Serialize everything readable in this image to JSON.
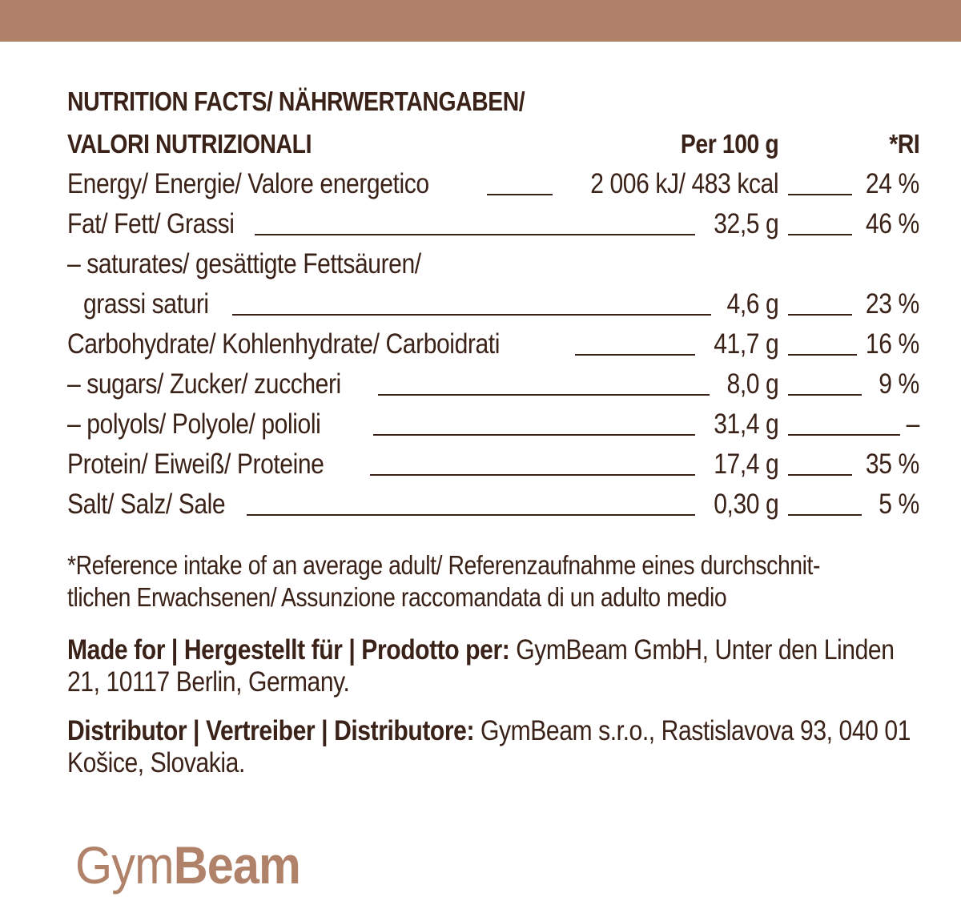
{
  "brand": {
    "color": "#b08269",
    "logo_light": "Gym",
    "logo_bold": "Beam"
  },
  "table": {
    "title_line1": "NUTRITION FACTS/ NÄHRWERTANGABEN/",
    "title_line2": "VALORI NUTRIZIONALI",
    "col_per100": "Per 100 g",
    "col_ri": "*RI",
    "rows": [
      {
        "label": "Energy/ Energie/ Valore energetico",
        "value": "2 006 kJ/ 483 kcal",
        "ri": "24 %"
      },
      {
        "label": "Fat/ Fett/ Grassi",
        "value": "32,5 g",
        "ri": "46 %"
      },
      {
        "label": "– saturates/ gesättigte Fettsäuren/"
      },
      {
        "label": "grassi saturi",
        "value": "4,6 g",
        "ri": "23 %"
      },
      {
        "label": "Carbohydrate/ Kohlenhydrate/ Carboidrati",
        "value": "41,7 g",
        "ri": "16 %"
      },
      {
        "label": "– sugars/ Zucker/ zuccheri",
        "value": "8,0 g",
        "ri": "9 %"
      },
      {
        "label": "– polyols/ Polyole/ polioli",
        "value": "31,4 g",
        "ri": "–"
      },
      {
        "label": "Protein/ Eiweiß/ Proteine",
        "value": "17,4 g",
        "ri": "35 %"
      },
      {
        "label": "Salt/ Salz/ Sale",
        "value": "0,30 g",
        "ri": "5 %"
      }
    ]
  },
  "footnote": {
    "line1": "*Reference intake of an average adult/ Referenzaufnahme eines durchschnit-",
    "line2": "tlichen Erwachsenen/ Assunzione raccomandata di un adulto medio"
  },
  "made_for": {
    "label": "Made for | Hergestellt für | Prodotto per:",
    "text": "GymBeam GmbH, Unter den Linden 21, 10117 Berlin, Germany."
  },
  "distributor": {
    "label": "Distributor | Vertreiber | Distributore:",
    "text": "GymBeam s.r.o., Rastislavova 93, 040 01 Košice, Slovakia."
  }
}
